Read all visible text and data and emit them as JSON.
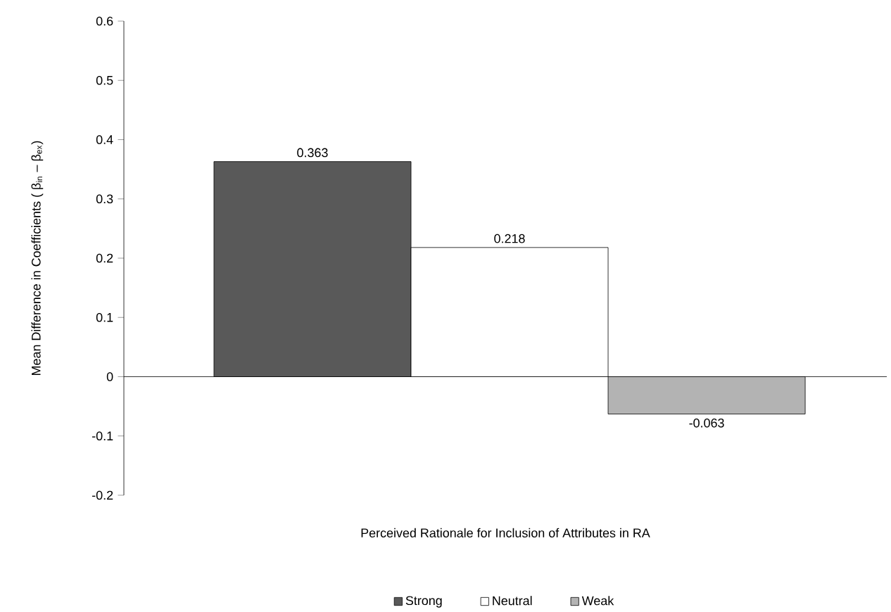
{
  "chart_data": {
    "type": "bar",
    "xlabel": "Perceived Rationale for Inclusion of Attributes in RA",
    "ylabel": "Mean Difference in Coefficients ( β$_{in}$ – β$_{ex}$)",
    "categories": [
      null,
      null,
      null
    ],
    "series": [
      {
        "name": "Strong",
        "color": "#595959",
        "values": [
          0.363,
          null,
          null
        ]
      },
      {
        "name": "Neutral",
        "color": "#ffffff",
        "values": [
          null,
          0.218,
          null
        ]
      },
      {
        "name": "Weak",
        "color": "#b3b3b3",
        "values": [
          null,
          null,
          -0.063
        ]
      }
    ],
    "ylim": [
      -0.2,
      0.6
    ],
    "yticks": [
      -0.2,
      -0.1,
      0,
      0.1,
      0.2,
      0.3,
      0.4,
      0.5,
      0.6
    ],
    "data_labels": true,
    "legend": "bottom"
  }
}
